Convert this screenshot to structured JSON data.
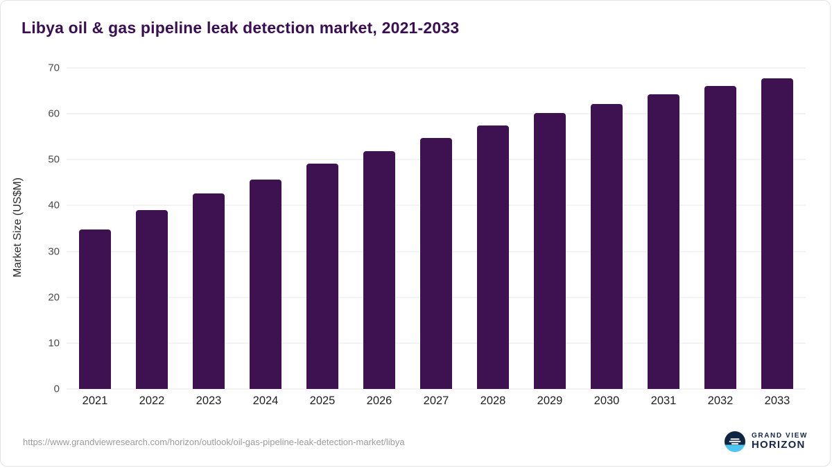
{
  "page": {
    "source_url": "https://www.grandviewresearch.com/horizon/outlook/oil-gas-pipeline-leak-detection-market/libya"
  },
  "logo": {
    "line1": "GRAND VIEW",
    "line2": "HORIZON"
  },
  "chart_data": {
    "type": "bar",
    "title": "Libya oil & gas pipeline leak detection market, 2021-2033",
    "categories": [
      "2021",
      "2022",
      "2023",
      "2024",
      "2025",
      "2026",
      "2027",
      "2028",
      "2029",
      "2030",
      "2031",
      "2032",
      "2033"
    ],
    "values": [
      34.8,
      39.0,
      42.6,
      45.6,
      49.2,
      51.8,
      54.8,
      57.4,
      60.1,
      62.2,
      64.3,
      66.1,
      67.7
    ],
    "xlabel": "",
    "ylabel": "Market Size (US$M)",
    "ylim": [
      0,
      70
    ],
    "yticks": [
      0,
      10,
      20,
      30,
      40,
      50,
      60,
      70
    ],
    "grid": true,
    "legend": "none",
    "bar_color": "#3e1151"
  }
}
